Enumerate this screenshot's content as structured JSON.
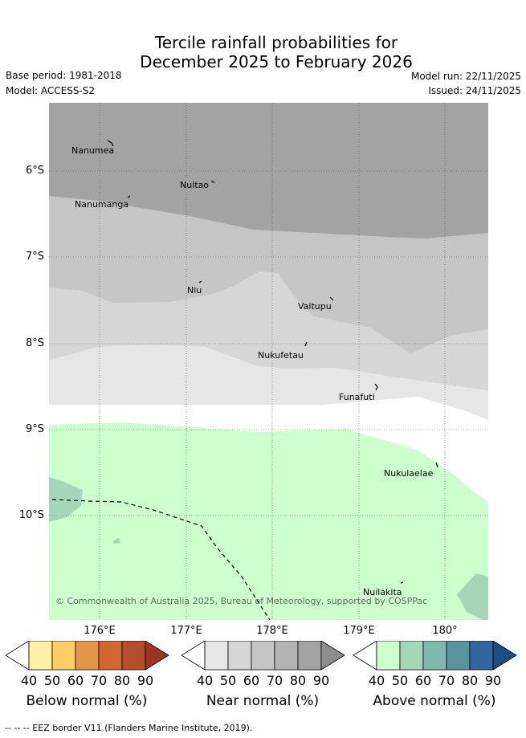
{
  "title_line1": "Tercile rainfall probabilities for",
  "title_line2": "December 2025 to February 2026",
  "base_period": "Base period: 1981-2018",
  "model": "Model: ACCESS-S2",
  "model_run": "Model run: 22/11/2025",
  "issued": "Issued: 24/11/2025",
  "copyright": "© Commonwealth of Australia 2025, Bureau of Meteorology, supported by COSPPac",
  "lat_labels": [
    "6°S",
    "7°S",
    "8°S",
    "9°S",
    "10°S"
  ],
  "lon_labels": [
    "176°E",
    "177°E",
    "178°E",
    "179°E",
    "180°"
  ],
  "places": [
    "Nanumea",
    "Nuitao",
    "Nanumanga",
    "Niu",
    "Vaitupu",
    "Nukufetau",
    "Funafuti",
    "Nukulaelae",
    "Nuilakita"
  ],
  "colorbars": {
    "below": {
      "label": "Below normal (%)",
      "ticks": [
        "40",
        "50",
        "60",
        "70",
        "80",
        "90"
      ],
      "colors": [
        "#ffffff",
        "#fff0a8",
        "#ffcc66",
        "#e3964a",
        "#d06632",
        "#b34f2a",
        "#9c3622"
      ]
    },
    "near": {
      "label": "Near normal (%)",
      "ticks": [
        "40",
        "50",
        "60",
        "70",
        "80",
        "90"
      ],
      "colors": [
        "#ffffff",
        "#e6e6e6",
        "#d6d6d6",
        "#c6c6c6",
        "#b3b3b3",
        "#a3a3a3",
        "#8c8c8c"
      ]
    },
    "above": {
      "label": "Above normal (%)",
      "ticks": [
        "40",
        "50",
        "60",
        "70",
        "80",
        "90"
      ],
      "colors": [
        "#ffffff",
        "#ccffcc",
        "#a6d6b8",
        "#80b8b0",
        "#5a93a0",
        "#33669e",
        "#194d88"
      ]
    }
  },
  "eez_note": "--  --  -- EEZ border V11 (Flanders Marine Institute, 2019)."
}
